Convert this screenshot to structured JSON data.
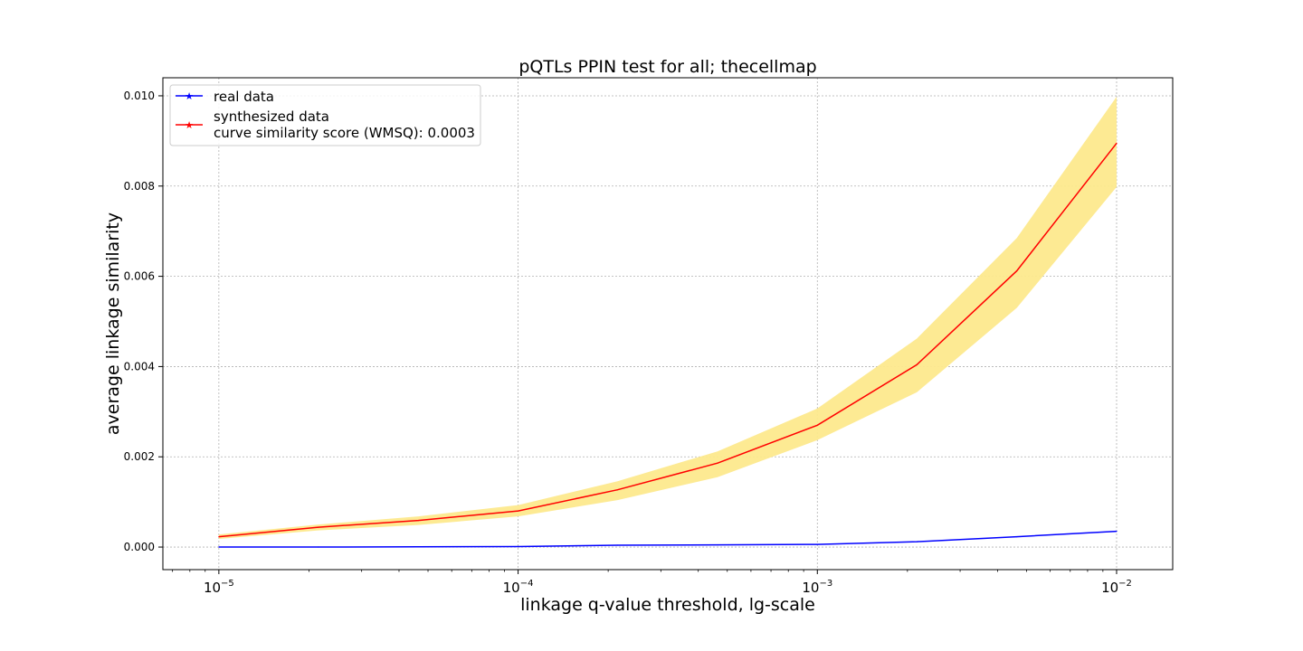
{
  "chart_data": {
    "type": "line",
    "title": "pQTLs PPIN test for all; thecellmap",
    "xlabel": "linkage q-value threshold, lg-scale",
    "ylabel": "average linkage similarity",
    "xscale": "log",
    "xlim": [
      6.5e-06,
      0.0154
    ],
    "ylim": [
      -0.0005,
      0.0104
    ],
    "grid": true,
    "legend_position": "top-left",
    "x": [
      1e-05,
      2.15e-05,
      4.64e-05,
      0.0001,
      0.000215,
      0.000464,
      0.001,
      0.00215,
      0.00464,
      0.01
    ],
    "xticks": [
      {
        "value": 1e-05,
        "base": "10",
        "exponent": "−5"
      },
      {
        "value": 0.0001,
        "base": "10",
        "exponent": "−4"
      },
      {
        "value": 0.001,
        "base": "10",
        "exponent": "−3"
      },
      {
        "value": 0.01,
        "base": "10",
        "exponent": "−2"
      }
    ],
    "yticks": [
      {
        "value": 0.0,
        "label": "0.000"
      },
      {
        "value": 0.002,
        "label": "0.002"
      },
      {
        "value": 0.004,
        "label": "0.004"
      },
      {
        "value": 0.006,
        "label": "0.006"
      },
      {
        "value": 0.008,
        "label": "0.008"
      },
      {
        "value": 0.01,
        "label": "0.010"
      }
    ],
    "series": [
      {
        "name": "real data",
        "color": "#0000ff",
        "values": [
          0.0,
          0.0,
          5e-06,
          1e-05,
          4e-05,
          5e-05,
          6e-05,
          0.00012,
          0.00023,
          0.00035
        ]
      },
      {
        "name": "synthesized data",
        "color": "#ff0000",
        "values": [
          0.00023,
          0.00044,
          0.00059,
          0.0008,
          0.00127,
          0.00186,
          0.0027,
          0.00404,
          0.00612,
          0.00895
        ],
        "band_upper": [
          0.00028,
          0.0005,
          0.00068,
          0.00093,
          0.00146,
          0.00212,
          0.00307,
          0.00462,
          0.00685,
          0.00998
        ],
        "band_lower": [
          0.00018,
          0.00037,
          0.00049,
          0.00068,
          0.00104,
          0.00155,
          0.00237,
          0.00343,
          0.0053,
          0.00798
        ],
        "band_color": "#fde98d"
      }
    ],
    "legend": {
      "entries": [
        {
          "label": "real data",
          "color": "#0000ff"
        },
        {
          "label": "synthesized data",
          "note": "curve similarity score (WMSQ): 0.0003",
          "color": "#ff0000"
        }
      ]
    }
  }
}
